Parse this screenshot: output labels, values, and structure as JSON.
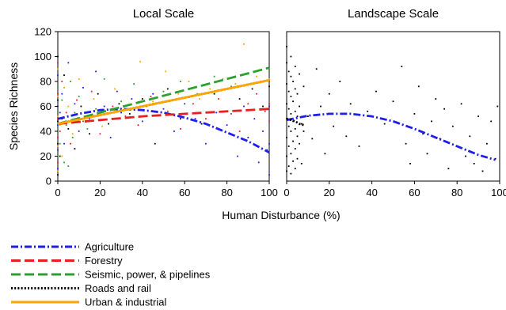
{
  "chart_data": [
    {
      "type": "scatter",
      "title": "Local Scale",
      "ylabel": "Species Richness",
      "xlabel": "Human Disturbance (%)",
      "xlim": [
        0,
        100
      ],
      "ylim": [
        0,
        120
      ],
      "xticks": [
        "0",
        "20",
        "40",
        "60",
        "80",
        "100"
      ],
      "yticks": [
        "0",
        "20",
        "40",
        "60",
        "80",
        "100",
        "120"
      ],
      "grid": false,
      "series": [
        {
          "name": "Agriculture",
          "color": "#1f1fe6",
          "dash": "dash-dot",
          "x": [
            0,
            10,
            20,
            30,
            40,
            50,
            60,
            70,
            80,
            90,
            100
          ],
          "y": [
            50,
            54,
            57,
            58,
            57,
            55,
            51,
            46,
            39,
            32,
            23
          ]
        },
        {
          "name": "Forestry",
          "color": "#e61f1f",
          "dash": "long-dash",
          "x": [
            0,
            20,
            40,
            60,
            80,
            100
          ],
          "y": [
            46,
            49,
            52,
            54,
            56,
            58
          ]
        },
        {
          "name": "Seismic, power, & pipelines",
          "color": "#2ca02c",
          "dash": "long-dash",
          "x": [
            0,
            20,
            40,
            60,
            80,
            100
          ],
          "y": [
            46,
            55,
            64,
            73,
            82,
            91
          ]
        },
        {
          "name": "Roads and rail",
          "color": "#000000",
          "dash": "dotted",
          "x": [
            0,
            20,
            40,
            60,
            80,
            100
          ],
          "y": [
            46,
            53,
            60,
            67,
            74,
            81
          ]
        },
        {
          "name": "Urban & industrial",
          "color": "#ffa500",
          "dash": "solid",
          "x": [
            0,
            20,
            40,
            60,
            80,
            100
          ],
          "y": [
            46,
            53,
            60,
            67,
            74,
            81
          ]
        }
      ],
      "scatter": [
        {
          "color": "#1f1fe6",
          "points": [
            [
              0,
              10
            ],
            [
              0,
              25
            ],
            [
              0,
              45
            ],
            [
              0,
              60
            ],
            [
              0,
              85
            ],
            [
              1,
              55
            ],
            [
              2,
              70
            ],
            [
              3,
              30
            ],
            [
              5,
              95
            ],
            [
              8,
              62
            ],
            [
              10,
              40
            ],
            [
              12,
              75
            ],
            [
              15,
              50
            ],
            [
              18,
              88
            ],
            [
              22,
              60
            ],
            [
              25,
              35
            ],
            [
              28,
              72
            ],
            [
              30,
              55
            ],
            [
              35,
              66
            ],
            [
              40,
              48
            ],
            [
              45,
              70
            ],
            [
              50,
              58
            ],
            [
              55,
              40
            ],
            [
              60,
              62
            ],
            [
              65,
              50
            ],
            [
              70,
              30
            ],
            [
              75,
              55
            ],
            [
              80,
              45
            ],
            [
              85,
              20
            ],
            [
              88,
              60
            ],
            [
              90,
              35
            ],
            [
              93,
              50
            ],
            [
              95,
              15
            ],
            [
              97,
              40
            ],
            [
              99,
              25
            ],
            [
              100,
              5
            ],
            [
              100,
              30
            ],
            [
              100,
              60
            ]
          ]
        },
        {
          "color": "#e61f1f",
          "points": [
            [
              0,
              15
            ],
            [
              0,
              35
            ],
            [
              0,
              50
            ],
            [
              0,
              70
            ],
            [
              0,
              95
            ],
            [
              1,
              40
            ],
            [
              2,
              80
            ],
            [
              4,
              55
            ],
            [
              6,
              30
            ],
            [
              9,
              65
            ],
            [
              12,
              48
            ],
            [
              16,
              72
            ],
            [
              20,
              38
            ],
            [
              26,
              60
            ],
            [
              32,
              52
            ],
            [
              38,
              45
            ],
            [
              44,
              68
            ],
            [
              52,
              56
            ],
            [
              58,
              42
            ],
            [
              64,
              62
            ],
            [
              70,
              50
            ],
            [
              76,
              66
            ],
            [
              82,
              54
            ],
            [
              86,
              40
            ],
            [
              90,
              62
            ],
            [
              94,
              70
            ],
            [
              98,
              56
            ],
            [
              100,
              48
            ],
            [
              100,
              62
            ],
            [
              100,
              80
            ]
          ]
        },
        {
          "color": "#2ca02c",
          "points": [
            [
              0,
              20
            ],
            [
              0,
              40
            ],
            [
              0,
              55
            ],
            [
              0,
              75
            ],
            [
              1,
              30
            ],
            [
              2,
              65
            ],
            [
              3,
              15
            ],
            [
              4,
              45
            ],
            [
              5,
              12
            ],
            [
              6,
              80
            ],
            [
              7,
              35
            ],
            [
              8,
              55
            ],
            [
              10,
              68
            ],
            [
              14,
              42
            ],
            [
              18,
              58
            ],
            [
              22,
              82
            ],
            [
              26,
              50
            ],
            [
              30,
              64
            ],
            [
              36,
              78
            ],
            [
              42,
              60
            ],
            [
              50,
              72
            ],
            [
              58,
              80
            ],
            [
              66,
              70
            ],
            [
              74,
              84
            ],
            [
              82,
              76
            ],
            [
              90,
              86
            ],
            [
              96,
              80
            ],
            [
              100,
              88
            ]
          ]
        },
        {
          "color": "#000000",
          "points": [
            [
              0,
              5
            ],
            [
              0,
              30
            ],
            [
              0,
              48
            ],
            [
              0,
              65
            ],
            [
              0,
              100
            ],
            [
              1,
              20
            ],
            [
              2,
              50
            ],
            [
              3,
              85
            ],
            [
              5,
              42
            ],
            [
              8,
              26
            ],
            [
              11,
              60
            ],
            [
              15,
              38
            ],
            [
              19,
              70
            ],
            [
              24,
              46
            ],
            [
              29,
              62
            ],
            [
              34,
              54
            ],
            [
              40,
              66
            ],
            [
              46,
              30
            ],
            [
              52,
              74
            ],
            [
              58,
              50
            ],
            [
              63,
              68
            ],
            [
              68,
              46
            ],
            [
              74,
              70
            ],
            [
              80,
              56
            ],
            [
              86,
              66
            ],
            [
              92,
              74
            ],
            [
              97,
              60
            ],
            [
              100,
              76
            ]
          ]
        },
        {
          "color": "#ffa500",
          "points": [
            [
              0,
              8
            ],
            [
              0,
              28
            ],
            [
              0,
              52
            ],
            [
              0,
              68
            ],
            [
              0,
              90
            ],
            [
              1,
              45
            ],
            [
              2,
              20
            ],
            [
              3,
              75
            ],
            [
              5,
              60
            ],
            [
              7,
              38
            ],
            [
              10,
              82
            ],
            [
              13,
              52
            ],
            [
              17,
              66
            ],
            [
              21,
              44
            ],
            [
              27,
              74
            ],
            [
              33,
              58
            ],
            [
              39,
              96
            ],
            [
              45,
              64
            ],
            [
              51,
              88
            ],
            [
              57,
              70
            ],
            [
              62,
              80
            ],
            [
              67,
              66
            ],
            [
              72,
              74
            ],
            [
              78,
              82
            ],
            [
              84,
              78
            ],
            [
              88,
              110
            ],
            [
              94,
              84
            ],
            [
              100,
              82
            ]
          ]
        }
      ]
    },
    {
      "type": "scatter",
      "title": "Landscape Scale",
      "xlim": [
        0,
        100
      ],
      "ylim": [
        0,
        120
      ],
      "xticks": [
        "0",
        "20",
        "40",
        "60",
        "80",
        "100"
      ],
      "grid": false,
      "series": [
        {
          "name": "Agriculture",
          "color": "#1f1fe6",
          "dash": "dash-dot",
          "x": [
            0,
            10,
            20,
            30,
            40,
            50,
            60,
            70,
            80,
            90,
            98
          ],
          "y": [
            49,
            52.5,
            54,
            54,
            52,
            48,
            42,
            35,
            28,
            21,
            17
          ]
        },
        {
          "name": "Roads and rail",
          "color": "#000000",
          "dash": "dotted",
          "x": [
            0,
            2,
            4,
            6,
            8
          ],
          "y": [
            50,
            49,
            48,
            46,
            45
          ]
        }
      ],
      "scatter": [
        {
          "color": "#000000",
          "points": [
            [
              0,
              8
            ],
            [
              0,
              20
            ],
            [
              0,
              35
            ],
            [
              0,
              50
            ],
            [
              0,
              62
            ],
            [
              0,
              78
            ],
            [
              0,
              95
            ],
            [
              0,
              108
            ],
            [
              1,
              12
            ],
            [
              1,
              28
            ],
            [
              1,
              44
            ],
            [
              1,
              58
            ],
            [
              1,
              72
            ],
            [
              1,
              88
            ],
            [
              2,
              6
            ],
            [
              2,
              22
            ],
            [
              2,
              40
            ],
            [
              2,
              54
            ],
            [
              2,
              68
            ],
            [
              2,
              84
            ],
            [
              2,
              100
            ],
            [
              3,
              16
            ],
            [
              3,
              32
            ],
            [
              3,
              48
            ],
            [
              3,
              64
            ],
            [
              3,
              80
            ],
            [
              4,
              10
            ],
            [
              4,
              26
            ],
            [
              4,
              42
            ],
            [
              4,
              56
            ],
            [
              4,
              74
            ],
            [
              4,
              92
            ],
            [
              5,
              18
            ],
            [
              5,
              36
            ],
            [
              5,
              52
            ],
            [
              5,
              70
            ],
            [
              6,
              30
            ],
            [
              6,
              60
            ],
            [
              6,
              86
            ],
            [
              7,
              14
            ],
            [
              7,
              46
            ],
            [
              8,
              40
            ],
            [
              8,
              76
            ],
            [
              10,
              52
            ],
            [
              12,
              34
            ],
            [
              14,
              90
            ],
            [
              16,
              60
            ],
            [
              18,
              22
            ],
            [
              20,
              70
            ],
            [
              22,
              44
            ],
            [
              25,
              80
            ],
            [
              28,
              36
            ],
            [
              30,
              62
            ],
            [
              34,
              28
            ],
            [
              38,
              56
            ],
            [
              42,
              72
            ],
            [
              46,
              46
            ],
            [
              50,
              64
            ],
            [
              54,
              92
            ],
            [
              56,
              30
            ],
            [
              58,
              14
            ],
            [
              60,
              54
            ],
            [
              62,
              76
            ],
            [
              64,
              38
            ],
            [
              66,
              22
            ],
            [
              68,
              48
            ],
            [
              70,
              66
            ],
            [
              72,
              34
            ],
            [
              74,
              58
            ],
            [
              76,
              10
            ],
            [
              78,
              44
            ],
            [
              80,
              28
            ],
            [
              82,
              62
            ],
            [
              84,
              20
            ],
            [
              86,
              36
            ],
            [
              88,
              14
            ],
            [
              90,
              52
            ],
            [
              92,
              8
            ],
            [
              94,
              30
            ],
            [
              96,
              48
            ],
            [
              98,
              18
            ],
            [
              99,
              60
            ]
          ]
        }
      ]
    }
  ],
  "legend": [
    {
      "label": "Agriculture",
      "color": "#1f1fe6",
      "dash": "dash-dot"
    },
    {
      "label": "Forestry",
      "color": "#e61f1f",
      "dash": "long-dash"
    },
    {
      "label": "Seismic, power, & pipelines",
      "color": "#2ca02c",
      "dash": "long-dash"
    },
    {
      "label": "Roads and rail",
      "color": "#000000",
      "dash": "dotted"
    },
    {
      "label": "Urban & industrial",
      "color": "#ffa500",
      "dash": "solid"
    }
  ]
}
